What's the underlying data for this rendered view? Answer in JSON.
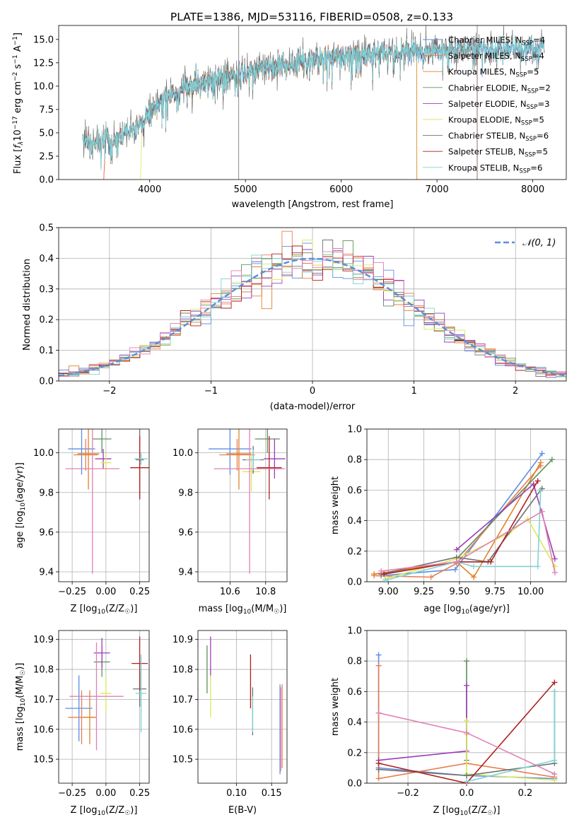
{
  "colors": {
    "Chabrier MILES": "#5b8ee6",
    "Salpeter MILES": "#e87e50",
    "Kroupa MILES": "#e0822a",
    "Chabrier ELODIE": "#5f8f5a",
    "Salpeter ELODIE": "#9b3db8",
    "Kroupa ELODIE": "#d9e85a",
    "Chabrier STELIB": "#707070",
    "Salpeter STELIB": "#b01f1f",
    "Kroupa STELIB": "#7fd3d6",
    "pink": "#e37fb4",
    "normal_curve": "#5b8ed6"
  },
  "chart_data": [
    {
      "id": "spectrum",
      "type": "line",
      "title": "PLATE=1386, MJD=53116, FIBERID=0508, z=0.133",
      "xlabel": "wavelength [Angstrom, rest frame]",
      "ylabel_parts": [
        "Flux [",
        "f",
        "λ",
        "10",
        "−17",
        " erg cm",
        "−2",
        " s",
        "−1",
        " A",
        "−1",
        "]"
      ],
      "xlim": [
        3050,
        8350
      ],
      "ylim": [
        0,
        16.5
      ],
      "xticks": [
        4000,
        5000,
        6000,
        7000,
        8000
      ],
      "yticks": [
        0.0,
        2.5,
        5.0,
        7.5,
        10.0,
        12.5,
        15.0
      ],
      "x_range_data": [
        3300,
        8120
      ],
      "continuum_knots": [
        [
          3300,
          4.0
        ],
        [
          3600,
          4.3
        ],
        [
          3900,
          5.6
        ],
        [
          4000,
          7.2
        ],
        [
          4200,
          9.0
        ],
        [
          4500,
          10.2
        ],
        [
          4800,
          11.0
        ],
        [
          5100,
          11.8
        ],
        [
          5500,
          12.6
        ],
        [
          6000,
          13.2
        ],
        [
          6500,
          13.6
        ],
        [
          7000,
          13.9
        ],
        [
          7500,
          14.0
        ],
        [
          8000,
          14.1
        ],
        [
          8120,
          14.0
        ]
      ],
      "spikes": [
        {
          "x": 4930,
          "y": 16.5
        },
        {
          "x": 7420,
          "y": 16.5
        }
      ],
      "legend": [
        "Chabrier MILES, N_SSP=4",
        "Salpeter MILES, N_SSP=4",
        "Kroupa MILES, N_SSP=5",
        "Chabrier ELODIE, N_SSP=2",
        "Salpeter ELODIE, N_SSP=3",
        "Kroupa ELODIE, N_SSP=5",
        "Chabrier STELIB, N_SSP=6",
        "Salpeter STELIB, N_SSP=5",
        "Kroupa STELIB, N_SSP=6"
      ],
      "legend_position": "upper right"
    },
    {
      "id": "residuals",
      "type": "histogram",
      "xlabel": "(data-model)/error",
      "ylabel": "Normed distribution",
      "xlim": [
        -2.5,
        2.5
      ],
      "ylim": [
        0,
        0.5
      ],
      "xticks": [
        -2,
        -1,
        0,
        1,
        2
      ],
      "yticks": [
        0.0,
        0.1,
        0.2,
        0.3,
        0.4,
        0.5
      ],
      "bin_width": 0.1,
      "reference_curve": "normal(0,1)",
      "legend": [
        "𝒩(0, 1)"
      ],
      "legend_position": "upper right",
      "grid": true
    },
    {
      "id": "age_vs_Z",
      "type": "errorbar",
      "xlabel": "Z [log10(Z/Z☉)]",
      "ylabel": "age  [log10(age/yr)]",
      "xlim": [
        -0.35,
        0.32
      ],
      "ylim": [
        9.35,
        10.12
      ],
      "xticks": [
        -0.25,
        0.0,
        0.25
      ],
      "xticklabels": [
        "−0.25",
        "0.00",
        "0.25"
      ],
      "yticks": [
        9.4,
        9.6,
        9.8,
        10.0
      ],
      "points": [
        {
          "model": "Chabrier MILES",
          "x": -0.18,
          "y": 10.02,
          "xerr": 0.1,
          "yerr": 0.13
        },
        {
          "model": "Salpeter MILES",
          "x": -0.15,
          "y": 9.99,
          "xerr": 0.09,
          "yerr": 0.08
        },
        {
          "model": "Kroupa MILES",
          "x": -0.13,
          "y": 9.995,
          "xerr": 0.08,
          "yerr": 0.18
        },
        {
          "model": "Chabrier ELODIE",
          "x": -0.03,
          "y": 10.07,
          "xerr": 0.07,
          "yerr": 0.07
        },
        {
          "model": "Salpeter ELODIE",
          "x": -0.02,
          "y": 9.97,
          "xerr": 0.06,
          "yerr": 0.05
        },
        {
          "model": "Kroupa ELODIE",
          "x": 0.0,
          "y": 9.95,
          "xerr": 0.04,
          "yerr": 0.05
        },
        {
          "model": "Chabrier STELIB",
          "x": 0.25,
          "y": 9.965,
          "xerr": 0.03,
          "yerr": 0.19
        },
        {
          "model": "Salpeter STELIB",
          "x": 0.25,
          "y": 9.925,
          "xerr": 0.07,
          "yerr": 0.16
        },
        {
          "model": "Kroupa STELIB",
          "x": 0.26,
          "y": 9.97,
          "xerr": 0.05,
          "yerr": 0.03
        },
        {
          "model": "pink",
          "x": -0.1,
          "y": 9.92,
          "xerr": 0.2,
          "yerr": 0.53
        }
      ],
      "grid": true
    },
    {
      "id": "age_vs_mass",
      "type": "errorbar",
      "xlabel": "mass [log10(M/M☉)]",
      "ylabel": "",
      "xlim": [
        10.42,
        10.92
      ],
      "ylim": [
        9.35,
        10.12
      ],
      "xticks": [
        10.6,
        10.8
      ],
      "xticklabels": [
        "10.6",
        "10.8"
      ],
      "yticks": [
        9.4,
        9.6,
        9.8,
        10.0
      ],
      "points": [
        {
          "model": "Chabrier MILES",
          "x": 10.6,
          "y": 10.02,
          "xerr": 0.12,
          "yerr": 0.13
        },
        {
          "model": "Salpeter MILES",
          "x": 10.64,
          "y": 9.99,
          "xerr": 0.1,
          "yerr": 0.08
        },
        {
          "model": "Kroupa MILES",
          "x": 10.65,
          "y": 9.995,
          "xerr": 0.07,
          "yerr": 0.18
        },
        {
          "model": "Chabrier ELODIE",
          "x": 10.81,
          "y": 10.07,
          "xerr": 0.07,
          "yerr": 0.07
        },
        {
          "model": "Salpeter ELODIE",
          "x": 10.85,
          "y": 9.97,
          "xerr": 0.06,
          "yerr": 0.1
        },
        {
          "model": "Kroupa ELODIE",
          "x": 10.72,
          "y": 9.905,
          "xerr": 0.05,
          "yerr": 0.1
        },
        {
          "model": "Chabrier STELIB",
          "x": 10.73,
          "y": 9.965,
          "xerr": 0.06,
          "yerr": 0.07
        },
        {
          "model": "Salpeter STELIB",
          "x": 10.82,
          "y": 9.925,
          "xerr": 0.07,
          "yerr": 0.16
        },
        {
          "model": "Kroupa STELIB",
          "x": 10.73,
          "y": 9.965,
          "xerr": 0.04,
          "yerr": 0.05
        },
        {
          "model": "pink",
          "x": 10.71,
          "y": 9.92,
          "xerr": 0.2,
          "yerr": 0.53
        }
      ],
      "grid": true
    },
    {
      "id": "weight_vs_age",
      "type": "line",
      "xlabel": "age  [log10(age/yr)]",
      "ylabel": "mass weight",
      "xlim": [
        8.85,
        10.25
      ],
      "ylim": [
        0,
        1.0
      ],
      "xticks": [
        9.0,
        9.25,
        9.5,
        9.75,
        10.0
      ],
      "xticklabels": [
        "9.00",
        "9.25",
        "9.50",
        "9.75",
        "10.00"
      ],
      "yticks": [
        0.0,
        0.2,
        0.4,
        0.6,
        0.8,
        1.0
      ],
      "series": [
        {
          "model": "Chabrier MILES",
          "x": [
            8.95,
            9.47,
            10.08
          ],
          "y": [
            0.04,
            0.08,
            0.84
          ]
        },
        {
          "model": "Salpeter MILES",
          "x": [
            8.9,
            9.3,
            9.48,
            10.07
          ],
          "y": [
            0.04,
            0.03,
            0.12,
            0.76
          ]
        },
        {
          "model": "Kroupa MILES",
          "x": [
            8.9,
            9.48,
            9.6,
            10.07
          ],
          "y": [
            0.05,
            0.13,
            0.03,
            0.78
          ]
        },
        {
          "model": "Chabrier ELODIE",
          "x": [
            9.48,
            10.15
          ],
          "y": [
            0.15,
            0.8
          ]
        },
        {
          "model": "Salpeter ELODIE",
          "x": [
            9.48,
            10.02,
            10.17
          ],
          "y": [
            0.21,
            0.64,
            0.15
          ]
        },
        {
          "model": "Kroupa ELODIE",
          "x": [
            8.98,
            9.48,
            9.85,
            9.98,
            10.17
          ],
          "y": [
            0.02,
            0.15,
            0.32,
            0.41,
            0.1
          ]
        },
        {
          "model": "Chabrier STELIB",
          "x": [
            8.95,
            9.48,
            9.7,
            10.07,
            10.08
          ],
          "y": [
            0.05,
            0.16,
            0.13,
            0.6,
            0.61
          ]
        },
        {
          "model": "Salpeter STELIB",
          "x": [
            8.97,
            9.48,
            9.72,
            10.05
          ],
          "y": [
            0.05,
            0.13,
            0.13,
            0.66
          ]
        },
        {
          "model": "Kroupa STELIB",
          "x": [
            8.98,
            9.48,
            9.6,
            10.05,
            10.07
          ],
          "y": [
            0.01,
            0.13,
            0.1,
            0.1,
            0.6
          ]
        },
        {
          "model": "pink",
          "x": [
            8.95,
            9.48,
            10.08,
            10.17
          ],
          "y": [
            0.07,
            0.13,
            0.46,
            0.06
          ]
        }
      ],
      "grid": true
    },
    {
      "id": "mass_vs_Z",
      "type": "errorbar",
      "xlabel": "Z [log10(Z/Z☉)]",
      "ylabel": "mass [log10(M/M☉)]",
      "xlim": [
        -0.35,
        0.32
      ],
      "ylim": [
        10.42,
        10.93
      ],
      "xticks": [
        -0.25,
        0.0,
        0.25
      ],
      "xticklabels": [
        "−0.25",
        "0.00",
        "0.25"
      ],
      "yticks": [
        10.5,
        10.6,
        10.7,
        10.8,
        10.9
      ],
      "points": [
        {
          "model": "Chabrier MILES",
          "x": -0.2,
          "y": 10.67,
          "xerr": 0.1,
          "yerr": 0.11
        },
        {
          "model": "Salpeter MILES",
          "x": -0.18,
          "y": 10.64,
          "xerr": 0.1,
          "yerr": 0.09
        },
        {
          "model": "Kroupa MILES",
          "x": -0.12,
          "y": 10.64,
          "xerr": 0.05,
          "yerr": 0.09
        },
        {
          "model": "Chabrier ELODIE",
          "x": -0.03,
          "y": 10.825,
          "xerr": 0.06,
          "yerr": 0.05
        },
        {
          "model": "Salpeter ELODIE",
          "x": -0.03,
          "y": 10.855,
          "xerr": 0.06,
          "yerr": 0.05
        },
        {
          "model": "Kroupa ELODIE",
          "x": 0.0,
          "y": 10.72,
          "xerr": 0.04,
          "yerr": 0.06
        },
        {
          "model": "Chabrier STELIB",
          "x": 0.25,
          "y": 10.735,
          "xerr": 0.05,
          "yerr": 0.06
        },
        {
          "model": "Salpeter STELIB",
          "x": 0.25,
          "y": 10.82,
          "xerr": 0.06,
          "yerr": 0.09
        },
        {
          "model": "Kroupa STELIB",
          "x": 0.26,
          "y": 10.72,
          "xerr": 0.04,
          "yerr": 0.13
        },
        {
          "model": "pink",
          "x": -0.07,
          "y": 10.71,
          "xerr": 0.2,
          "yerr": 0.18
        }
      ],
      "grid": true
    },
    {
      "id": "mass_vs_EBV",
      "type": "errorbar",
      "xlabel": "E(B-V)",
      "ylabel": "",
      "xlim": [
        0.045,
        0.172
      ],
      "ylim": [
        10.42,
        10.93
      ],
      "xticks": [
        0.1,
        0.15
      ],
      "xticklabels": [
        "0.10",
        "0.15"
      ],
      "yticks": [
        10.5,
        10.6,
        10.7,
        10.8,
        10.9
      ],
      "points": [
        {
          "model": "Chabrier MILES",
          "x": 0.162,
          "y": 10.6,
          "xerr": 0,
          "yerr": 0.15
        },
        {
          "model": "Salpeter MILES",
          "x": 0.165,
          "y": 10.61,
          "xerr": 0,
          "yerr": 0.14
        },
        {
          "model": "Chabrier ELODIE",
          "x": 0.058,
          "y": 10.8,
          "xerr": 0,
          "yerr": 0.08
        },
        {
          "model": "Salpeter ELODIE",
          "x": 0.063,
          "y": 10.84,
          "xerr": 0,
          "yerr": 0.07
        },
        {
          "model": "Kroupa ELODIE",
          "x": 0.063,
          "y": 10.71,
          "xerr": 0,
          "yerr": 0.07
        },
        {
          "model": "Chabrier STELIB",
          "x": 0.123,
          "y": 10.66,
          "xerr": 0,
          "yerr": 0.08
        },
        {
          "model": "Salpeter STELIB",
          "x": 0.12,
          "y": 10.76,
          "xerr": 0,
          "yerr": 0.09
        },
        {
          "model": "Kroupa STELIB",
          "x": 0.123,
          "y": 10.65,
          "xerr": 0,
          "yerr": 0.06
        },
        {
          "model": "pink",
          "x": 0.163,
          "y": 10.6,
          "xerr": 0,
          "yerr": 0.14
        }
      ],
      "grid": true
    },
    {
      "id": "weight_vs_Z",
      "type": "line",
      "xlabel": "Z [log10(Z/Z☉)]",
      "ylabel": "mass weight",
      "xlim": [
        -0.34,
        0.34
      ],
      "ylim": [
        0,
        1.0
      ],
      "xticks": [
        -0.2,
        0.0,
        0.2
      ],
      "xticklabels": [
        "−0.2",
        "0.0",
        "0.2"
      ],
      "yticks": [
        0.0,
        0.2,
        0.4,
        0.6,
        0.8,
        1.0
      ],
      "series": [
        {
          "model": "Chabrier MILES",
          "x": [
            -0.3,
            -0.3,
            0.0,
            0.3
          ],
          "y": [
            0.84,
            0.1,
            0.05,
            0.03
          ]
        },
        {
          "model": "Salpeter MILES",
          "x": [
            -0.3,
            -0.3,
            0.0,
            0.3
          ],
          "y": [
            0.77,
            0.03,
            0.13,
            0.04
          ]
        },
        {
          "model": "Chabrier ELODIE",
          "x": [
            0.0,
            0.0
          ],
          "y": [
            0.8,
            0.15
          ]
        },
        {
          "model": "Salpeter ELODIE",
          "x": [
            -0.3,
            0.0,
            0.0
          ],
          "y": [
            0.15,
            0.21,
            0.64
          ]
        },
        {
          "model": "Kroupa ELODIE",
          "x": [
            0.0,
            0.0,
            0.0,
            0.3
          ],
          "y": [
            0.41,
            0.32,
            0.06,
            0.02
          ]
        },
        {
          "model": "Chabrier STELIB",
          "x": [
            -0.3,
            0.0,
            0.3,
            0.3
          ],
          "y": [
            0.09,
            0.05,
            0.13,
            0.6
          ]
        },
        {
          "model": "Salpeter STELIB",
          "x": [
            -0.3,
            0.0,
            0.3
          ],
          "y": [
            0.13,
            0.0,
            0.66
          ]
        },
        {
          "model": "Kroupa STELIB",
          "x": [
            0.0,
            0.3,
            0.3
          ],
          "y": [
            0.01,
            0.15,
            0.6
          ]
        },
        {
          "model": "pink",
          "x": [
            -0.3,
            0.0,
            0.3
          ],
          "y": [
            0.46,
            0.33,
            0.06
          ]
        }
      ],
      "grid": true
    }
  ]
}
